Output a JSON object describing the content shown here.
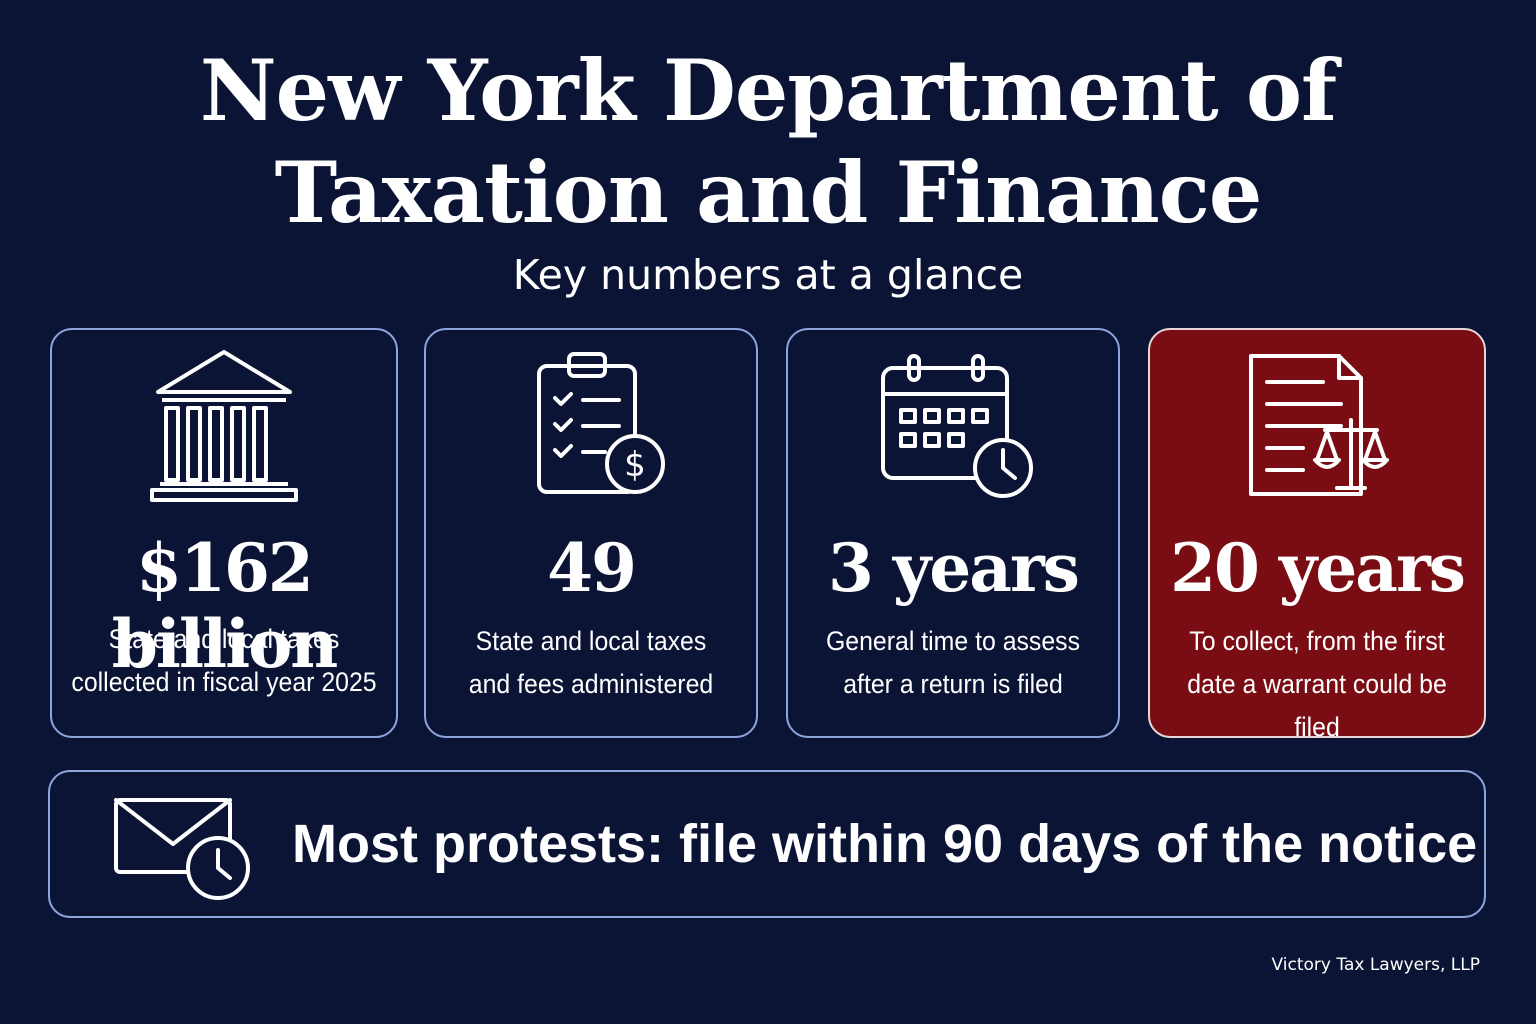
{
  "header": {
    "title_line1": "New York Department of",
    "title_line2": "Taxation and Finance",
    "subtitle": "Key numbers at a glance"
  },
  "cards": [
    {
      "icon": "bank-building-icon",
      "value": "$162 billion",
      "desc_line1": "State and local taxes",
      "desc_line2": "collected in fiscal year 2025"
    },
    {
      "icon": "clipboard-checklist-dollar-icon",
      "value": "49",
      "desc_line1": "State and local taxes",
      "desc_line2": "and fees administered"
    },
    {
      "icon": "calendar-clock-icon",
      "value": "3 years",
      "desc_line1": "General time to assess",
      "desc_line2": "after a return is filed"
    },
    {
      "icon": "document-scales-icon",
      "value": "20 years",
      "desc_line1": "To collect, from the first",
      "desc_line2": "date a warrant could be filed"
    }
  ],
  "banner": {
    "icon": "envelope-clock-icon",
    "text": "Most protests: file within 90 days of the notice"
  },
  "footer": {
    "text": "Victory Tax Lawyers, LLP"
  },
  "colors": {
    "background": "#0b1435",
    "card_border": "#8ea5dc",
    "highlight": "#7a0d14",
    "text": "#ffffff"
  }
}
